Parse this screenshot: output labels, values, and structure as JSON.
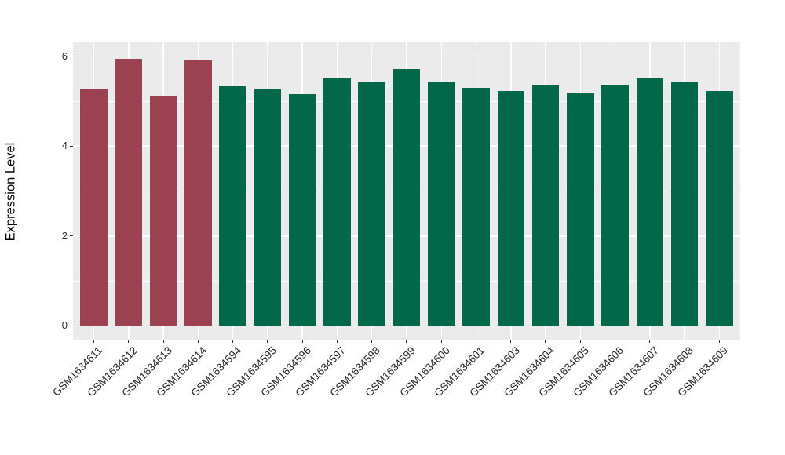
{
  "chart_data": {
    "type": "bar",
    "title": "",
    "xlabel": "",
    "ylabel": "Expression Level",
    "categories": [
      "GSM1634611",
      "GSM1634612",
      "GSM1634613",
      "GSM1634614",
      "GSM1634594",
      "GSM1634595",
      "GSM1634596",
      "GSM1634597",
      "GSM1634598",
      "GSM1634599",
      "GSM1634600",
      "GSM1634601",
      "GSM1634603",
      "GSM1634604",
      "GSM1634605",
      "GSM1634606",
      "GSM1634607",
      "GSM1634608",
      "GSM1634609"
    ],
    "values": [
      5.26,
      5.95,
      5.12,
      5.91,
      5.35,
      5.26,
      5.16,
      5.51,
      5.42,
      5.71,
      5.43,
      5.3,
      5.22,
      5.37,
      5.17,
      5.36,
      5.5,
      5.43,
      5.22
    ],
    "groups": [
      "highlight",
      "highlight",
      "highlight",
      "highlight",
      "control",
      "control",
      "control",
      "control",
      "control",
      "control",
      "control",
      "control",
      "control",
      "control",
      "control",
      "control",
      "control",
      "control",
      "control"
    ],
    "colors": {
      "highlight": "#9C4352",
      "control": "#03684A"
    },
    "panel_background": "#EBEBEB",
    "gridline_color": "#FFFFFF",
    "ylim": [
      -0.31,
      6.31
    ],
    "yticks": {
      "values": [
        0,
        2,
        4,
        6
      ],
      "labels": [
        "0",
        "2",
        "4",
        "6"
      ]
    },
    "yminor": [
      1,
      3,
      5
    ],
    "grid": "on",
    "legend": "none",
    "x_tick_rotation_deg": 45
  }
}
